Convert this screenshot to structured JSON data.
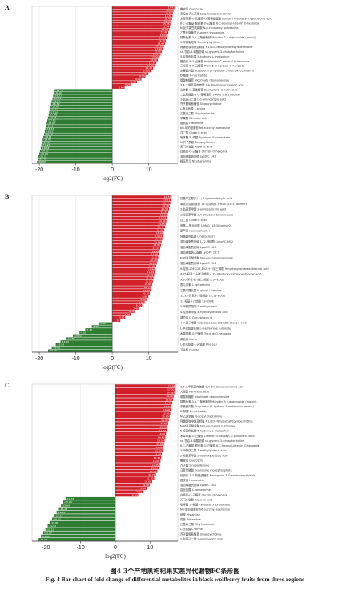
{
  "figure": {
    "caption_cn": "图4 3个产地黑枸杞果实差异代谢物FC条形图",
    "caption_en": "Fig. 4  Bar chart of fold change of differential metabolites in black wolfberry fruits from three regions"
  },
  "colors": {
    "up": "#d1202a",
    "down": "#2e7d32",
    "grid": "#e6e6e6",
    "axis": "#333333"
  },
  "chart_data": [
    {
      "type": "bar",
      "orientation": "horizontal",
      "panel": "A",
      "xlabel": "log2(FC)",
      "xlim": [
        -22,
        18
      ],
      "xticks": [
        -20,
        -10,
        0,
        10
      ],
      "up_values": [
        17.41,
        16.83,
        16.62,
        16.55,
        16.4,
        16.2,
        15.95,
        15.84,
        15.6,
        15.4,
        15.2,
        14.98,
        14.7,
        14.48,
        14.2,
        13.9,
        13.6,
        13.25,
        12.9,
        12.5,
        12.1,
        11.7,
        11.2,
        10.6,
        9.9,
        9.1,
        8.0,
        6.8,
        5.2,
        3.4
      ],
      "down_values": [
        -15.78,
        -16.04,
        -16.21,
        -16.39,
        -16.61,
        -16.79,
        -16.94,
        -17.12,
        -17.3,
        -17.46,
        -17.65,
        -17.83,
        -18.0,
        -18.14,
        -18.33,
        -18.52,
        -18.7,
        -18.91,
        -19.08,
        -19.26,
        -19.45,
        -19.63,
        -19.82,
        -20.0,
        -20.21,
        -20.43,
        -20.62
      ],
      "labels": [
        "槲皮素 Quercetin",
        "表没食子儿茶素 Epigallocatechin (EGC)",
        "木犀草素-O-己糖苷-O-葡萄糖醛酸 Luteolin O-hexosyl-O-glucuronic acid",
        "8-C-己糖基-根皮素-O-己糖苷 8-C-hexosyl-luteolin O-hexoside",
        "N-反式香豆酰腐胺 N-p-coumaroyl putrescine",
        "乙酰化隐黄质 N-acetyl tryptamine",
        "锦葵色素 3,5-二葡萄糖苷 Malvidin 3,5-diglucoside (malvin)",
        "5-甲基胞嘧啶 5-methylcytidine",
        "阿魏酰咖啡酰亚精胺 N1,N10-feruloylcaffeoylspermidine",
        "sn-甘油-3-磷酸胆碱 sn-glycero-3-phosphocholine",
        "5-羟基色氨酸 5-hydroxy-L-tryptophan",
        "橙皮素 5-O-己糖苷 Hesperetin C-hexosyl-O-hexoside",
        "三羟基 5-O-己糖苷 Tricin 5-O-hexosyl-O-hexoside",
        "东莨菪内酯 Scopoletin (7-hydroxy-5-methoxycoumarin)",
        "D-核酸 D-nucleotide",
        "烟酸核糖苷 Nicotinate ribonucleoside",
        "3,4-二甲氧基肉桂酸 3,4-dimethoxycinnamic acid",
        "山柰酚 O-芸香糖苷 Kaempferol-O-rutinoside",
        "二氢阿魏酸-3-O-葡萄糖苷 1-MAG (18:3) isomer",
        "2-氨基己二酸 L-α-aminoadipic acid",
        "芥子醛葡萄糖苷 Sinapoylcholine",
        "L-焦谷氨酸 L-serine",
        "乙基丙二酸 Ethylmalonate",
        "苹果酸 DL-malic acid",
        "组氨酸 Histamine",
        "N6-琥珀酰腺苷 N6-succinyl adenosine",
        "戊二酸 Glutaric acid",
        "吡哆醛 5'-磷酸 Pyridoxal 5'-phosphate",
        "N-芥子酰胺 Sinapoyl amine",
        "天门冬氨酸 Aspartic acid",
        "白杨素-O-己糖苷 Chrysin O-hexoside",
        "溶血磷脂酰胆碱 LysoPC 14:0",
        "梅花苷元 Nicotianamine"
      ]
    },
    {
      "type": "bar",
      "orientation": "horizontal",
      "panel": "B",
      "xlabel": "log2(FC)",
      "xlim": [
        -22,
        18
      ],
      "xticks": [
        -20,
        -10,
        0,
        10
      ],
      "up_values": [
        16.31,
        16.13,
        15.94,
        15.76,
        15.58,
        15.39,
        15.21,
        15.02,
        14.84,
        14.65,
        14.47,
        14.28,
        14.1,
        13.91,
        13.73,
        13.54,
        13.36,
        13.17,
        12.99,
        12.8,
        12.62,
        12.43,
        12.25,
        12.06,
        11.88,
        11.69,
        11.51,
        11.32,
        11.14,
        10.95,
        10.77,
        10.58,
        10.3,
        9.9,
        9.4,
        8.9,
        8.2,
        7.4,
        6.3,
        5.1,
        3.6,
        2.2
      ],
      "down_values": [
        -3.8,
        -5.6,
        -7.4,
        -9.0,
        -10.8,
        -12.6,
        -14.2,
        -15.5,
        -16.6,
        -17.6
      ],
      "labels": [
        "羟基苯乙酸(S)-(-)-2-hydroxybutyric acid",
        "单酰甘油酯(酰基 18:3)异构体 3 MAG (18:3) isomer3",
        "3-氨基苯甲酸 3-aminosalicylic acid",
        "二羟基苯甲酸 3,4-dihydroxybenzoic acid",
        "戊二酸 Glutaric acid",
        "甲基-L-焦谷氨酸 1-MAG (18:3) isomer2",
        "葫芦素 I Cucurbitacin I",
        "阿魏酰色氨酸 L-hesperetin",
        "溶血磷脂酰胆碱 1-(2-棕榈酰) LysoPC 18:2",
        "溶血磷脂酰胆碱 LysoPC 16:2",
        "溶血磷脂酰乙醇胺 LysoPE 18:1",
        "N-对香豆酰精胺 N-p-coumaroylspermine",
        "溶血磷脂酰胆碱 LysoPC 20:4",
        "9-羟基-10E,12Z,15Z-十八碳三烯酸 9-hydroxy-octadecatrienoic acid",
        "4,15-羟基二十碳五烯酸 4,15-dihydroxy-eicosapentaenoic acid",
        "9,10-环氧十八碳二烯酸 9,10-EODE",
        "表儿茶素 L-epicatechin",
        "乙酰环酪氨酸 N-glycyl-L-leucine",
        "12,13-环氧十八碳烯酸 12,13-EODE",
        "13-羟基十八烷酸 13-KODE",
        "5-甲基尿嘧啶 5-methyluracil",
        "4-羟基苯甲酸 4-hydroxybenzoic acid",
        "葫芦素 D Cucurbitacin D",
        "十八碳三烯酸 Octadeca-11E,13E,15Z-trienoic acid",
        "L-甲硫氨酸亚砜 L-methionine sulfoxide",
        "木犀草素-O-己糖苷 Tricin di-O-hexoside",
        "桑色素 Morin",
        "L-苯丙氨酸-L-亮氨酸 Phe-Leu",
        "卫矛醇 Dulcitol"
      ]
    },
    {
      "type": "bar",
      "orientation": "horizontal",
      "panel": "C",
      "xlabel": "log2(FC)",
      "xlim": [
        -24,
        18
      ],
      "xticks": [
        -20,
        -10,
        0,
        10
      ],
      "up_values": [
        17.38,
        17.2,
        17.0,
        16.8,
        16.6,
        16.4,
        16.2,
        16.0,
        15.8,
        15.6,
        15.4,
        15.2,
        15.0,
        14.8,
        14.6,
        14.4,
        14.2,
        14.0,
        13.8,
        13.6,
        13.4,
        13.2,
        13.0,
        12.8,
        12.5,
        12.1,
        11.7,
        11.2,
        10.6,
        9.9,
        9.0,
        7.9,
        6.6
      ],
      "down_values": [
        -14.35,
        -15.0,
        -15.64,
        -16.28,
        -16.93,
        -17.57,
        -18.22,
        -18.86,
        -19.5,
        -20.15,
        -20.79,
        -21.44,
        -22.08
      ],
      "labels": [
        "3,4-二甲氧基肉桂酸 3,4-dimethoxycinnamic acid",
        "犬尿酸 Kynurenic acid",
        "烟酸核糖苷 Nicotinate ribonucleoside",
        "锦葵色素 3,5-二葡萄糖苷 Malvidin 3,5-diglucoside (malvin)",
        "东莨菪内酯 Scopoletin (7-hydroxy-5-methoxycoumarin)",
        "D-核酸 D-nucleotide",
        "N-乙酰色胺 N-acetyl tryptamine",
        "阿魏酰咖啡酰亚精胺 N1,N10-feruloylcaffeoylspermidine",
        "N-对香豆酰腐胺 N-p-coumaroyl putrescine",
        "5-羟基色氨酸 5-hydroxy-L-tryptophan",
        "木犀草素-O-己糖苷 Luteolin O-hexosyl-O-glucuronic acid",
        "sn-甘油-3-磷酸胆碱 sn-glycero-3-phosphocholine",
        "8-C-己糖基-根皮素-O-己糖苷 8-C-hexosyl-luteolin O-hexoside",
        "3-甲基戊二酸 3-methylglutaric acid",
        "2-羟基苯甲酸 2-hydroxybenzoic acid",
        "槲皮素 Quercetin",
        "芥子醛 Sinapaldehyde",
        "乌苷单磷酸 Guanosine monophosphate",
        "柚皮素 7-O-新橙皮糖苷 Naringenin 7-O-neohesperidoside",
        "橙皮素 Hesperetin",
        "溶血磷脂酰胆碱 LysoPC 14:0",
        "高丝氨酸 L-homoserine",
        "白杨素-O-己糖苷 Chrysin O-hexoside",
        "天门冬氨酸 Aspartic acid",
        "吡哆醛 5'-磷酸 Pyridoxal 5'-phosphate",
        "N6-琥珀酰腺苷 N6-succinyl adenosine",
        "组胺 Histamine",
        "腐胺 Putrescine",
        "乙基丙二酸 Ethylmalonate",
        "L-丝氨酸 L-serine",
        "芥子醛葡萄糖苷 Sinapoylcholine",
        "2-氨基己二酸 2-aminoadipic acid"
      ]
    }
  ]
}
